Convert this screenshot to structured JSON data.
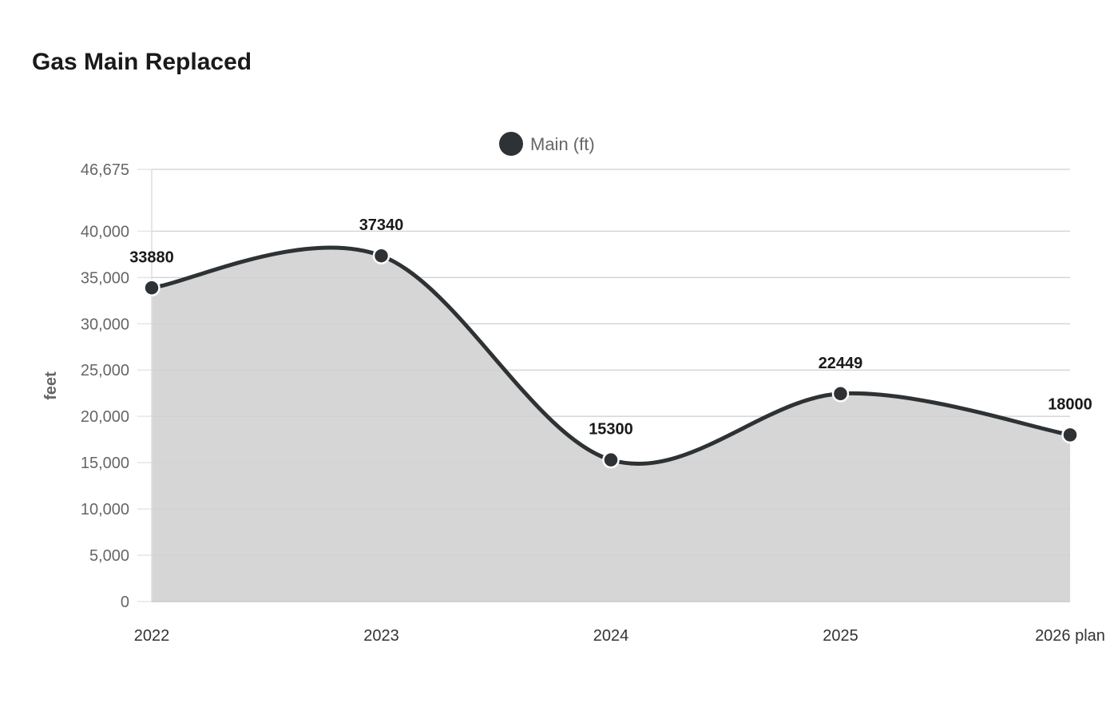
{
  "chart_data": {
    "type": "area",
    "title": "Gas Main Replaced",
    "categories": [
      "2022",
      "2023",
      "2024",
      "2025",
      "2026 plan"
    ],
    "series": [
      {
        "name": "Main (ft)",
        "values": [
          33880,
          37340,
          15300,
          22449,
          18000
        ],
        "color": "#2e3234",
        "fill": "#d5d6d5"
      }
    ],
    "xlabel": "",
    "ylabel": "feet",
    "ylim": [
      0,
      46675
    ],
    "yticks": [
      0,
      5000,
      10000,
      15000,
      20000,
      25000,
      30000,
      35000,
      40000,
      46675
    ],
    "ytick_labels": [
      "0",
      "5,000",
      "10,000",
      "15,000",
      "20,000",
      "25,000",
      "30,000",
      "35,000",
      "40,000",
      "46,675"
    ],
    "data_labels": [
      "33880",
      "37340",
      "15300",
      "22449",
      "18000"
    ],
    "grid": true,
    "legend": "top-center",
    "smooth": true
  }
}
